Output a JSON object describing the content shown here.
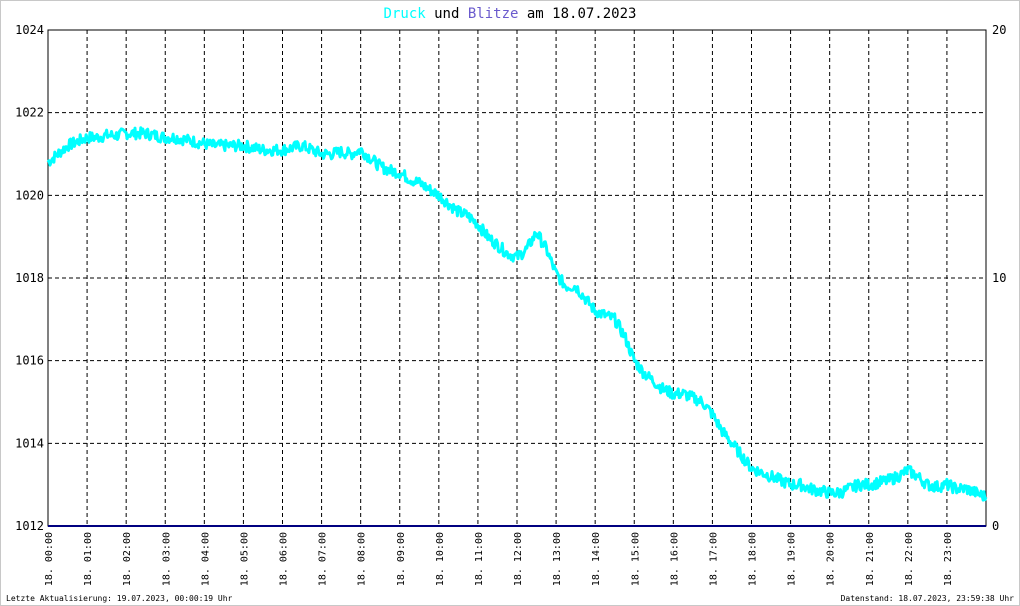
{
  "title": {
    "part1": "Druck",
    "part2": " und ",
    "part3": "Blitze",
    "part4": " am 18.07.2023",
    "color1": "#00ffff",
    "color3": "#6a5acd",
    "color_text": "#000000"
  },
  "footer": {
    "left": "Letzte Aktualisierung: 19.07.2023, 00:00:19 Uhr",
    "right": "Datenstand: 18.07.2023, 23:59:38 Uhr"
  },
  "chart_data": {
    "type": "line",
    "title": "Druck und Blitze am 18.07.2023",
    "xlabel": "",
    "ylabel": "",
    "ylim": [
      1012,
      1024
    ],
    "y2lim": [
      0,
      20
    ],
    "xlim": [
      0,
      24
    ],
    "grid": true,
    "y_ticks": [
      "1012",
      "1014",
      "1016",
      "1018",
      "1020",
      "1022",
      "1024"
    ],
    "y2_ticks": [
      "0",
      "10",
      "20"
    ],
    "x_ticks": [
      "18. 00:00",
      "18. 01:00",
      "18. 02:00",
      "18. 03:00",
      "18. 04:00",
      "18. 05:00",
      "18. 06:00",
      "18. 07:00",
      "18. 08:00",
      "18. 09:00",
      "18. 10:00",
      "18. 11:00",
      "18. 12:00",
      "18. 13:00",
      "18. 14:00",
      "18. 15:00",
      "18. 16:00",
      "18. 17:00",
      "18. 18:00",
      "18. 19:00",
      "18. 20:00",
      "18. 21:00",
      "18. 22:00",
      "18. 23:00"
    ],
    "series": [
      {
        "name": "Druck",
        "color": "#00ffff",
        "axis": "left",
        "x": [
          0,
          0.25,
          0.5,
          0.75,
          1,
          1.25,
          1.5,
          1.75,
          2,
          2.25,
          2.5,
          2.75,
          3,
          3.25,
          3.5,
          3.75,
          4,
          4.25,
          4.5,
          4.75,
          5,
          5.25,
          5.5,
          5.75,
          6,
          6.25,
          6.5,
          6.75,
          7,
          7.25,
          7.5,
          7.75,
          8,
          8.25,
          8.5,
          8.75,
          9,
          9.25,
          9.5,
          9.75,
          10,
          10.25,
          10.5,
          10.75,
          11,
          11.25,
          11.5,
          11.75,
          12,
          12.25,
          12.5,
          12.75,
          13,
          13.25,
          13.5,
          13.75,
          14,
          14.25,
          14.5,
          14.75,
          15,
          15.25,
          15.5,
          15.75,
          16,
          16.25,
          16.5,
          16.75,
          17,
          17.25,
          17.5,
          17.75,
          18,
          18.25,
          18.5,
          18.75,
          19,
          19.25,
          19.5,
          19.75,
          20,
          20.25,
          20.5,
          20.75,
          21,
          21.25,
          21.5,
          21.75,
          22,
          22.25,
          22.5,
          22.75,
          23,
          23.25,
          23.5,
          23.75,
          24
        ],
        "y": [
          1020.8,
          1021.0,
          1021.2,
          1021.3,
          1021.4,
          1021.4,
          1021.45,
          1021.45,
          1021.5,
          1021.5,
          1021.5,
          1021.45,
          1021.4,
          1021.4,
          1021.35,
          1021.3,
          1021.25,
          1021.2,
          1021.2,
          1021.2,
          1021.2,
          1021.15,
          1021.1,
          1021.1,
          1021.1,
          1021.15,
          1021.2,
          1021.1,
          1021.0,
          1021.0,
          1021.05,
          1021.0,
          1021.1,
          1020.9,
          1020.7,
          1020.6,
          1020.55,
          1020.4,
          1020.3,
          1020.15,
          1020.0,
          1019.8,
          1019.6,
          1019.5,
          1019.3,
          1019.0,
          1018.8,
          1018.6,
          1018.5,
          1018.7,
          1019.1,
          1018.7,
          1018.1,
          1017.8,
          1017.8,
          1017.5,
          1017.2,
          1017.1,
          1017.0,
          1016.6,
          1016.0,
          1015.7,
          1015.5,
          1015.3,
          1015.2,
          1015.2,
          1015.1,
          1015.0,
          1014.7,
          1014.3,
          1014.0,
          1013.7,
          1013.4,
          1013.3,
          1013.2,
          1013.1,
          1013.0,
          1013.0,
          1012.9,
          1012.85,
          1012.8,
          1012.8,
          1012.9,
          1013.0,
          1013.0,
          1013.05,
          1013.1,
          1013.2,
          1013.35,
          1013.2,
          1013.0,
          1012.95,
          1013.0,
          1012.9,
          1012.9,
          1012.8,
          1012.7
        ]
      },
      {
        "name": "Blitze",
        "color": "#000080",
        "axis": "right",
        "x": [
          0,
          24
        ],
        "y": [
          0,
          0
        ]
      }
    ]
  }
}
